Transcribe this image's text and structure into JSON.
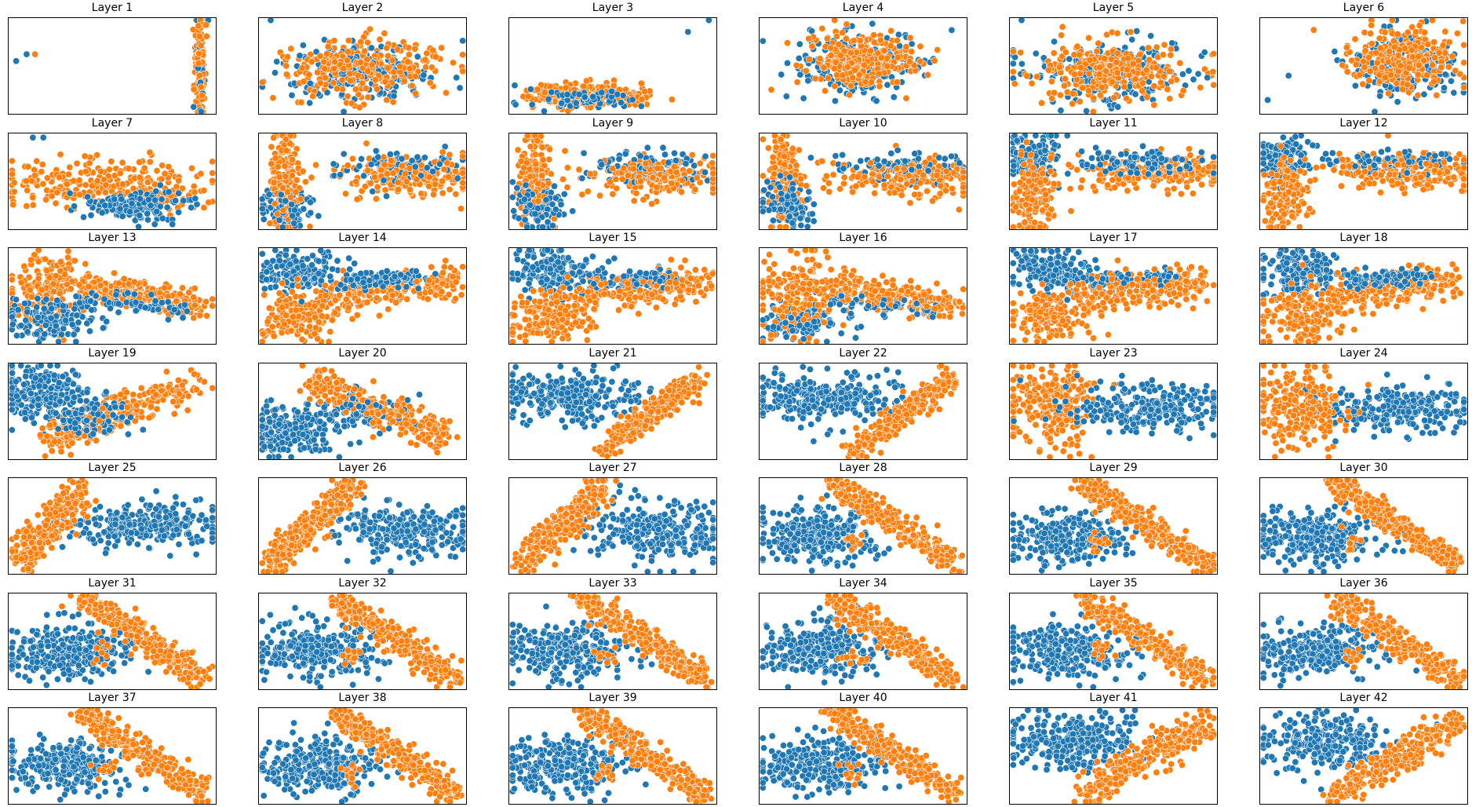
{
  "figure": {
    "panel_count": 42,
    "columns": 6,
    "rows": 7
  },
  "colors": {
    "series_a": "#1f77b4",
    "series_b": "#ff7f0e",
    "marker_edge": "#ffffff",
    "frame": "#000000"
  },
  "chart_data": {
    "type": "scatter",
    "grid": false,
    "legend": "none",
    "axis_ticks": false,
    "panels": [
      {
        "title": "Layer 1",
        "shape": "layer1"
      },
      {
        "title": "Layer 2",
        "shape": "blob_wide"
      },
      {
        "title": "Layer 3",
        "shape": "layer3"
      },
      {
        "title": "Layer 4",
        "shape": "blob"
      },
      {
        "title": "Layer 5",
        "shape": "blob_wide"
      },
      {
        "title": "Layer 6",
        "shape": "blob_right"
      },
      {
        "title": "Layer 7",
        "shape": "wing"
      },
      {
        "title": "Layer 8",
        "shape": "split_left"
      },
      {
        "title": "Layer 9",
        "shape": "split_left"
      },
      {
        "title": "Layer 10",
        "shape": "split_left"
      },
      {
        "title": "Layer 11",
        "shape": "split_left_b"
      },
      {
        "title": "Layer 12",
        "shape": "split_left_b"
      },
      {
        "title": "Layer 13",
        "shape": "fan"
      },
      {
        "title": "Layer 14",
        "shape": "fan_b"
      },
      {
        "title": "Layer 15",
        "shape": "fan_b"
      },
      {
        "title": "Layer 16",
        "shape": "fan"
      },
      {
        "title": "Layer 17",
        "shape": "fan_b"
      },
      {
        "title": "Layer 18",
        "shape": "fan_b"
      },
      {
        "title": "Layer 19",
        "shape": "diag_up"
      },
      {
        "title": "Layer 20",
        "shape": "diag_down"
      },
      {
        "title": "Layer 21",
        "shape": "v_shape"
      },
      {
        "title": "Layer 22",
        "shape": "v_shape"
      },
      {
        "title": "Layer 23",
        "shape": "left_orange"
      },
      {
        "title": "Layer 24",
        "shape": "left_orange"
      },
      {
        "title": "Layer 25",
        "shape": "left_orange_b"
      },
      {
        "title": "Layer 26",
        "shape": "rise"
      },
      {
        "title": "Layer 27",
        "shape": "rise"
      },
      {
        "title": "Layer 28",
        "shape": "cross"
      },
      {
        "title": "Layer 29",
        "shape": "cross"
      },
      {
        "title": "Layer 30",
        "shape": "cross"
      },
      {
        "title": "Layer 31",
        "shape": "cross"
      },
      {
        "title": "Layer 32",
        "shape": "cross"
      },
      {
        "title": "Layer 33",
        "shape": "cross"
      },
      {
        "title": "Layer 34",
        "shape": "cross"
      },
      {
        "title": "Layer 35",
        "shape": "cross"
      },
      {
        "title": "Layer 36",
        "shape": "cross"
      },
      {
        "title": "Layer 37",
        "shape": "cross"
      },
      {
        "title": "Layer 38",
        "shape": "cross"
      },
      {
        "title": "Layer 39",
        "shape": "cross"
      },
      {
        "title": "Layer 40",
        "shape": "cross"
      },
      {
        "title": "Layer 41",
        "shape": "two_blob"
      },
      {
        "title": "Layer 42",
        "shape": "two_blob"
      }
    ]
  }
}
